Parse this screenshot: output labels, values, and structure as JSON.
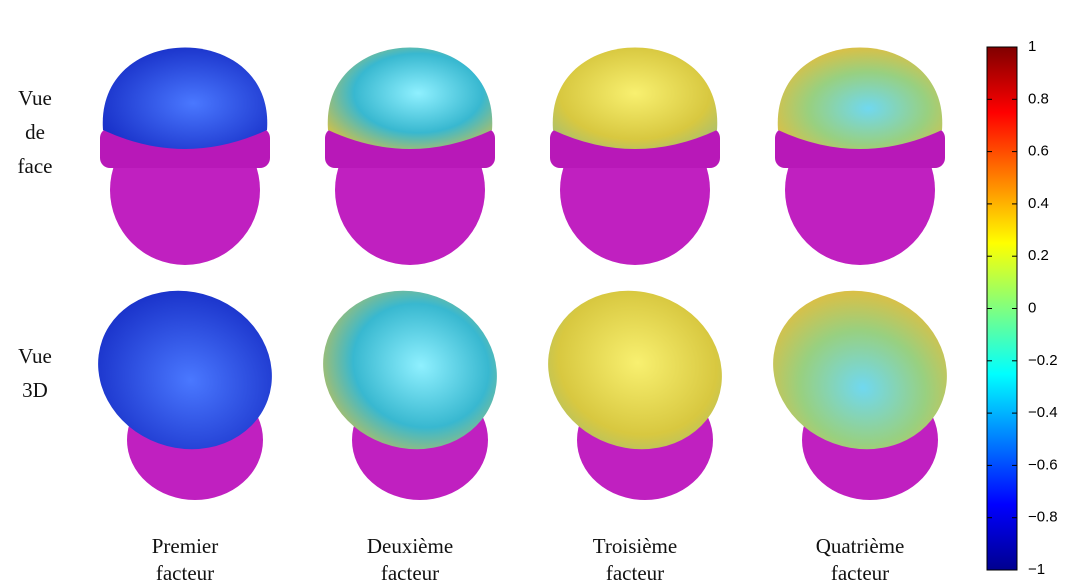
{
  "row_labels": [
    [
      "Vue",
      "de",
      "face"
    ],
    [
      "Vue",
      "3D"
    ]
  ],
  "column_labels": [
    [
      "Premier",
      "facteur"
    ],
    [
      "Deuxième",
      "facteur"
    ],
    [
      "Troisième",
      "facteur"
    ],
    [
      "Quatrième",
      "facteur"
    ]
  ],
  "colorbar": {
    "lim": [
      -1,
      1
    ],
    "ticks": [
      {
        "value": -1,
        "label": "−1"
      },
      {
        "value": -0.8,
        "label": "−0.8"
      },
      {
        "value": -0.6,
        "label": "−0.6"
      },
      {
        "value": -0.4,
        "label": "−0.4"
      },
      {
        "value": -0.2,
        "label": "−0.2"
      },
      0,
      0.2,
      0.4,
      0.6,
      0.8,
      1
    ]
  }
}
